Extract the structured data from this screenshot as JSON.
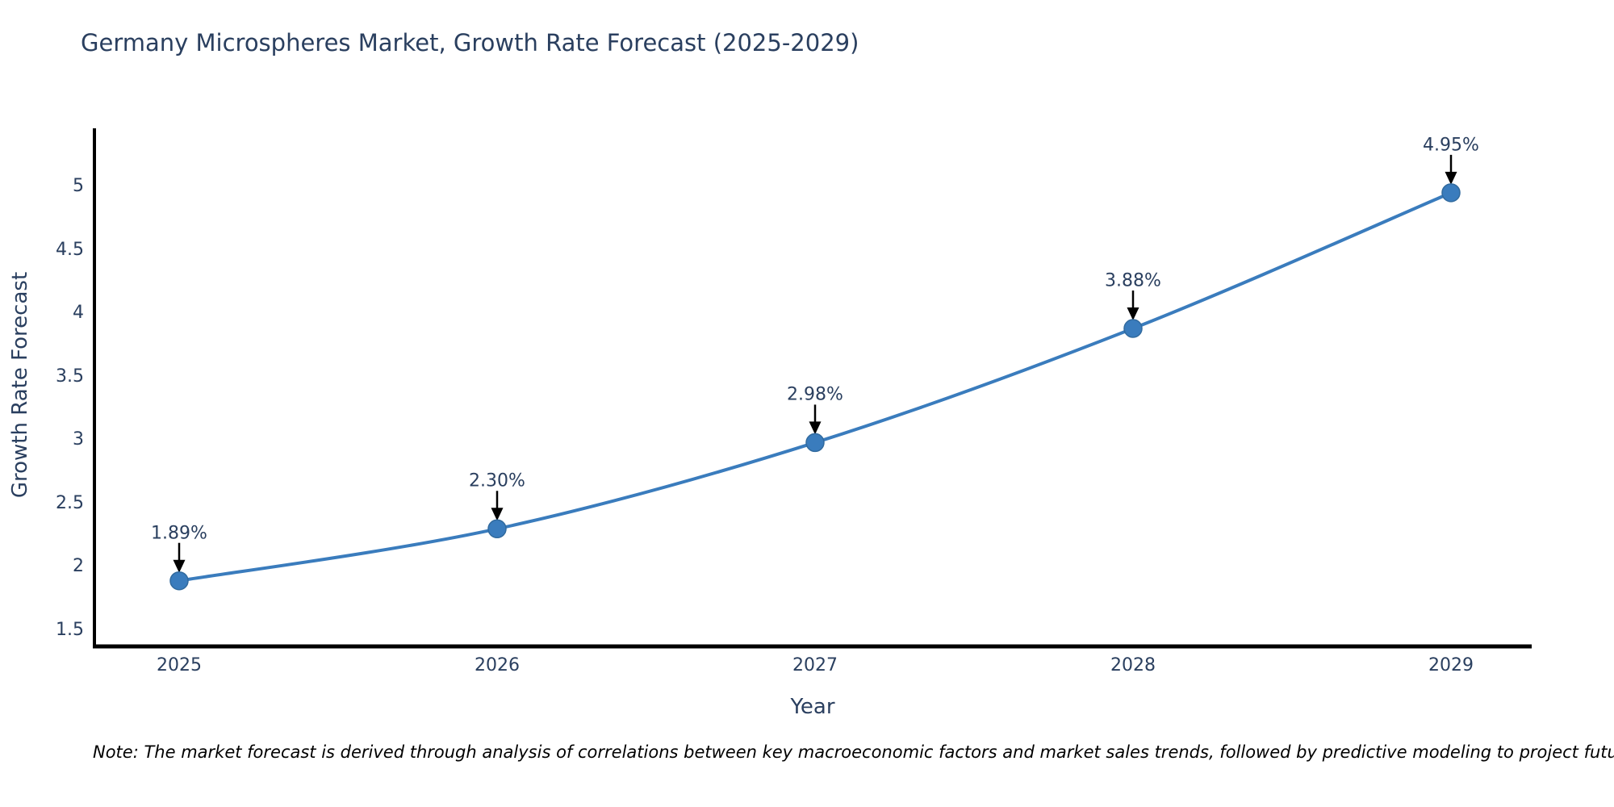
{
  "page": {
    "background": "#ffffff"
  },
  "chart_data": {
    "type": "line",
    "title": "Germany Microspheres Market, Growth Rate Forecast (2025-2029)",
    "xlabel": "Year",
    "ylabel": "Growth Rate Forecast",
    "x": [
      2025,
      2026,
      2027,
      2028,
      2029
    ],
    "xtick_labels": [
      "2025",
      "2026",
      "2027",
      "2028",
      "2029"
    ],
    "series": [
      {
        "name": "Growth Rate Forecast",
        "values": [
          1.89,
          2.3,
          2.98,
          3.88,
          4.95
        ],
        "point_labels": [
          "1.89%",
          "2.30%",
          "2.98%",
          "3.88%",
          "4.95%"
        ]
      }
    ],
    "yticks": [
      1.5,
      2,
      2.5,
      3,
      3.5,
      4,
      4.5,
      5
    ],
    "ytick_labels": [
      "1.5",
      "2",
      "2.5",
      "3",
      "3.5",
      "4",
      "4.5",
      "5"
    ],
    "ylim": [
      1.37,
      5.45
    ],
    "grid": false,
    "legend": "none",
    "line_shape": "spline",
    "annotations_have_arrows": true,
    "colors": {
      "line": "#3a7cbd",
      "marker": "#3a7cbd",
      "marker_edge": "#316a9e",
      "axis_line": "#000000",
      "arrow": "#000000",
      "text": "#2a3f5f",
      "note_text": "#000000"
    }
  },
  "footnote": "Note: The market forecast is derived through analysis of correlations between key macroeconomic factors and market sales trends, followed by predictive modeling to project future sales"
}
